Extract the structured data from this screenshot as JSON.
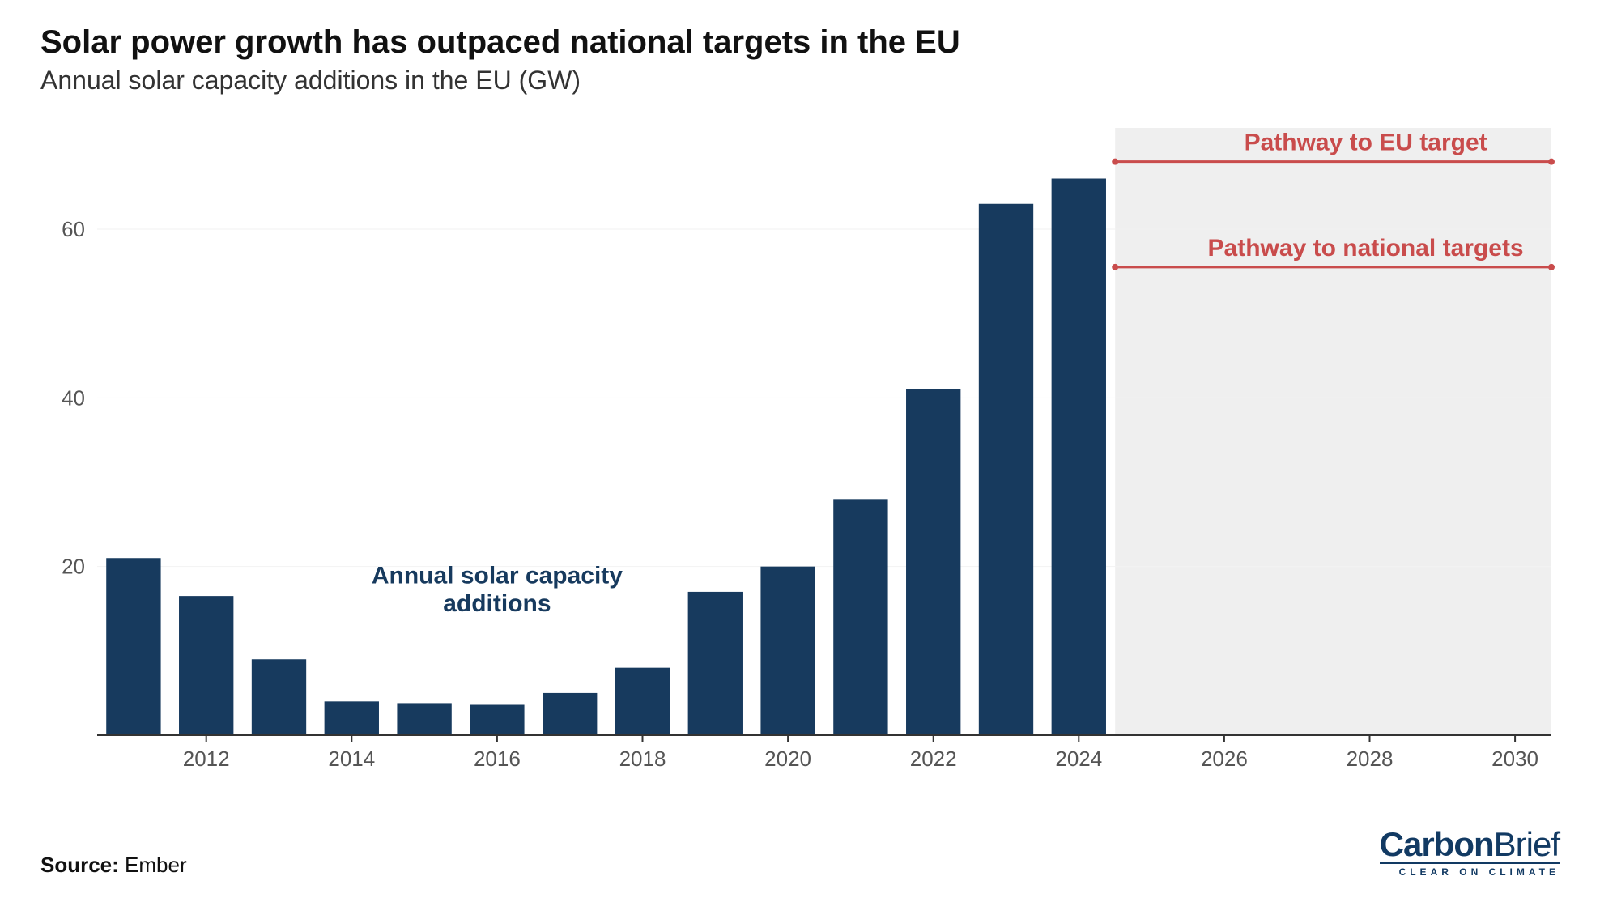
{
  "title": "Solar power growth has outpaced national targets in the EU",
  "subtitle": "Annual solar capacity additions in the EU (GW)",
  "source_label": "Source:",
  "source_value": "Ember",
  "logo_main_1": "Carbon",
  "logo_main_2": "Brief",
  "logo_tag": "CLEAR ON CLIMATE",
  "chart": {
    "type": "bar",
    "years": [
      2011,
      2012,
      2013,
      2014,
      2015,
      2016,
      2017,
      2018,
      2019,
      2020,
      2021,
      2022,
      2023,
      2024
    ],
    "values": [
      21,
      16.5,
      9,
      4,
      3.8,
      3.6,
      5,
      8,
      17,
      20,
      28,
      41,
      63,
      66
    ],
    "bar_color": "#173a5e",
    "x_ticks": [
      2012,
      2014,
      2016,
      2018,
      2020,
      2022,
      2024,
      2026,
      2028,
      2030
    ],
    "y_ticks": [
      20,
      40,
      60
    ],
    "y_max": 72,
    "x_min": 2010.5,
    "x_max": 2030.5,
    "grid_color": "#f2f2f2",
    "axis_color": "#333333",
    "tick_font_size": 26,
    "tick_color": "#555555",
    "future_zone_start": 2024.5,
    "future_zone_color": "#efefef",
    "annotation_bar": {
      "text": "Annual solar capacity additions",
      "color": "#173a5e",
      "font_size": 30,
      "font_weight": 700,
      "x_year": 2016,
      "y_value_top": 18
    },
    "pathways": [
      {
        "label": "Pathway to EU target",
        "value": 68,
        "x_start": 2024.5,
        "x_end": 2030.5,
        "color": "#c94c4c"
      },
      {
        "label": "Pathway to national targets",
        "value": 55.5,
        "x_start": 2024.5,
        "x_end": 2030.5,
        "color": "#c94c4c"
      }
    ],
    "pathway_label_font_size": 30,
    "pathway_label_font_weight": 700
  }
}
